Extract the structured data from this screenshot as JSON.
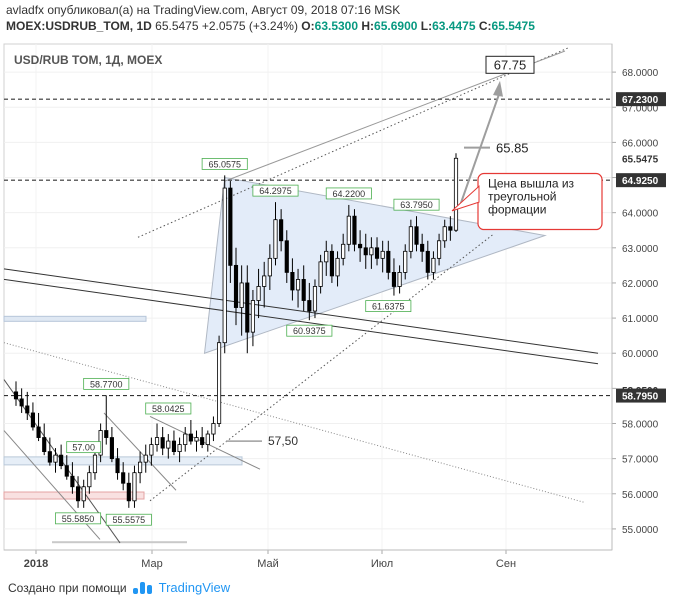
{
  "header": {
    "line1": "avladfx опубликовал(а) на TradingView.com, Август 09, 2018 07:16 MSK",
    "symbol": "MOEX:USDRUB_TOM, 1D",
    "last": "65.5475",
    "change": "+2.0575 (+3.24%)",
    "o_label": "O:",
    "o": "63.5300",
    "h_label": "H:",
    "h": "65.6900",
    "l_label": "L:",
    "l": "63.4475",
    "c_label": "C:",
    "c": "65.5475"
  },
  "chart_data": {
    "type": "candlestick",
    "title": "USD/RUB TOM, 1Д, MOEX",
    "ylim": [
      54.4,
      68.8
    ],
    "y_ticks": [
      "55.0000",
      "56.0000",
      "57.0000",
      "58.0000",
      "59.0000",
      "60.0000",
      "61.0000",
      "62.0000",
      "63.0000",
      "64.0000",
      "65.0000",
      "66.0000",
      "67.0000",
      "68.0000"
    ],
    "x_ticks": [
      "2018",
      "Мар",
      "Май",
      "Июл",
      "Сен"
    ],
    "price_tags": [
      {
        "value": "67.2300",
        "y": 67.23,
        "style": "dark"
      },
      {
        "value": "65.5475",
        "y": 65.5475,
        "style": "plain"
      },
      {
        "value": "64.9250",
        "y": 64.925,
        "style": "dark"
      },
      {
        "value": "58.9500",
        "y": 58.95,
        "style": "plain"
      },
      {
        "value": "58.7950",
        "y": 58.795,
        "style": "dark"
      }
    ],
    "horizontal_levels": [
      67.23,
      64.925,
      58.795
    ],
    "candles": [
      {
        "o": 58.9,
        "h": 59.2,
        "l": 58.5,
        "c": 58.7
      },
      {
        "o": 58.7,
        "h": 59.0,
        "l": 58.3,
        "c": 58.5
      },
      {
        "o": 58.5,
        "h": 58.9,
        "l": 58.1,
        "c": 58.3
      },
      {
        "o": 58.3,
        "h": 58.6,
        "l": 57.8,
        "c": 57.9
      },
      {
        "o": 57.9,
        "h": 58.3,
        "l": 57.5,
        "c": 57.6
      },
      {
        "o": 57.6,
        "h": 58.0,
        "l": 57.1,
        "c": 57.2
      },
      {
        "o": 57.2,
        "h": 57.6,
        "l": 56.8,
        "c": 56.9
      },
      {
        "o": 56.9,
        "h": 57.3,
        "l": 56.6,
        "c": 57.1
      },
      {
        "o": 57.1,
        "h": 57.4,
        "l": 56.7,
        "c": 56.8
      },
      {
        "o": 56.8,
        "h": 57.1,
        "l": 56.4,
        "c": 56.5
      },
      {
        "o": 56.5,
        "h": 56.9,
        "l": 56.0,
        "c": 56.2
      },
      {
        "o": 56.2,
        "h": 56.5,
        "l": 55.6,
        "c": 55.8
      },
      {
        "o": 55.8,
        "h": 56.4,
        "l": 55.6,
        "c": 56.2
      },
      {
        "o": 56.2,
        "h": 56.8,
        "l": 56.0,
        "c": 56.6
      },
      {
        "o": 56.6,
        "h": 57.3,
        "l": 56.4,
        "c": 57.1
      },
      {
        "o": 57.1,
        "h": 58.0,
        "l": 56.9,
        "c": 57.8
      },
      {
        "o": 57.8,
        "h": 58.8,
        "l": 57.4,
        "c": 57.6
      },
      {
        "o": 57.6,
        "h": 57.9,
        "l": 56.9,
        "c": 57.0
      },
      {
        "o": 57.0,
        "h": 57.3,
        "l": 56.4,
        "c": 56.6
      },
      {
        "o": 56.6,
        "h": 56.9,
        "l": 56.1,
        "c": 56.3
      },
      {
        "o": 56.3,
        "h": 56.6,
        "l": 55.6,
        "c": 55.8
      },
      {
        "o": 55.8,
        "h": 56.8,
        "l": 55.6,
        "c": 56.6
      },
      {
        "o": 56.6,
        "h": 57.2,
        "l": 56.3,
        "c": 56.9
      },
      {
        "o": 56.9,
        "h": 57.4,
        "l": 56.6,
        "c": 57.1
      },
      {
        "o": 57.1,
        "h": 57.6,
        "l": 56.8,
        "c": 57.4
      },
      {
        "o": 57.4,
        "h": 58.0,
        "l": 57.2,
        "c": 57.6
      },
      {
        "o": 57.6,
        "h": 57.9,
        "l": 57.1,
        "c": 57.3
      },
      {
        "o": 57.3,
        "h": 57.7,
        "l": 57.0,
        "c": 57.5
      },
      {
        "o": 57.5,
        "h": 57.8,
        "l": 57.1,
        "c": 57.2
      },
      {
        "o": 57.2,
        "h": 57.6,
        "l": 56.9,
        "c": 57.4
      },
      {
        "o": 57.4,
        "h": 57.9,
        "l": 57.2,
        "c": 57.7
      },
      {
        "o": 57.7,
        "h": 58.1,
        "l": 57.4,
        "c": 57.5
      },
      {
        "o": 57.5,
        "h": 57.8,
        "l": 57.2,
        "c": 57.6
      },
      {
        "o": 57.6,
        "h": 57.9,
        "l": 57.3,
        "c": 57.4
      },
      {
        "o": 57.4,
        "h": 57.8,
        "l": 57.2,
        "c": 57.7
      },
      {
        "o": 57.7,
        "h": 58.2,
        "l": 57.5,
        "c": 58.0
      },
      {
        "o": 58.0,
        "h": 60.5,
        "l": 57.9,
        "c": 60.3
      },
      {
        "o": 60.3,
        "h": 65.06,
        "l": 60.0,
        "c": 64.7
      },
      {
        "o": 64.7,
        "h": 64.9,
        "l": 62.0,
        "c": 62.5
      },
      {
        "o": 62.5,
        "h": 63.0,
        "l": 60.8,
        "c": 61.3
      },
      {
        "o": 61.3,
        "h": 62.5,
        "l": 60.5,
        "c": 62.0
      },
      {
        "o": 62.0,
        "h": 62.5,
        "l": 60.0,
        "c": 60.6
      },
      {
        "o": 60.6,
        "h": 61.8,
        "l": 60.2,
        "c": 61.5
      },
      {
        "o": 61.5,
        "h": 62.4,
        "l": 61.0,
        "c": 61.9
      },
      {
        "o": 61.9,
        "h": 62.6,
        "l": 61.3,
        "c": 62.2
      },
      {
        "o": 62.2,
        "h": 63.1,
        "l": 61.8,
        "c": 62.7
      },
      {
        "o": 62.7,
        "h": 64.3,
        "l": 62.5,
        "c": 63.8
      },
      {
        "o": 63.8,
        "h": 64.1,
        "l": 62.9,
        "c": 63.2
      },
      {
        "o": 63.2,
        "h": 63.5,
        "l": 62.0,
        "c": 62.3
      },
      {
        "o": 62.3,
        "h": 62.7,
        "l": 61.5,
        "c": 61.8
      },
      {
        "o": 61.8,
        "h": 62.4,
        "l": 61.3,
        "c": 62.1
      },
      {
        "o": 62.1,
        "h": 62.5,
        "l": 61.2,
        "c": 61.5
      },
      {
        "o": 61.5,
        "h": 62.0,
        "l": 60.94,
        "c": 61.2
      },
      {
        "o": 61.2,
        "h": 62.1,
        "l": 61.0,
        "c": 61.9
      },
      {
        "o": 61.9,
        "h": 62.8,
        "l": 61.7,
        "c": 62.6
      },
      {
        "o": 62.6,
        "h": 63.2,
        "l": 62.2,
        "c": 62.9
      },
      {
        "o": 62.9,
        "h": 63.1,
        "l": 62.0,
        "c": 62.2
      },
      {
        "o": 62.2,
        "h": 62.9,
        "l": 61.9,
        "c": 62.7
      },
      {
        "o": 62.7,
        "h": 63.4,
        "l": 62.5,
        "c": 63.1
      },
      {
        "o": 63.1,
        "h": 64.22,
        "l": 62.9,
        "c": 63.9
      },
      {
        "o": 63.9,
        "h": 64.1,
        "l": 62.9,
        "c": 63.1
      },
      {
        "o": 63.1,
        "h": 63.5,
        "l": 62.6,
        "c": 63.0
      },
      {
        "o": 63.0,
        "h": 63.4,
        "l": 62.4,
        "c": 62.8
      },
      {
        "o": 62.8,
        "h": 63.3,
        "l": 62.4,
        "c": 63.0
      },
      {
        "o": 63.0,
        "h": 63.3,
        "l": 62.5,
        "c": 62.7
      },
      {
        "o": 62.7,
        "h": 63.2,
        "l": 62.3,
        "c": 62.9
      },
      {
        "o": 62.9,
        "h": 63.2,
        "l": 62.1,
        "c": 62.3
      },
      {
        "o": 62.3,
        "h": 62.7,
        "l": 61.64,
        "c": 61.9
      },
      {
        "o": 61.9,
        "h": 62.5,
        "l": 61.7,
        "c": 62.3
      },
      {
        "o": 62.3,
        "h": 63.1,
        "l": 62.1,
        "c": 62.9
      },
      {
        "o": 62.9,
        "h": 63.8,
        "l": 62.7,
        "c": 63.6
      },
      {
        "o": 63.6,
        "h": 63.9,
        "l": 62.9,
        "c": 63.1
      },
      {
        "o": 63.1,
        "h": 63.4,
        "l": 62.6,
        "c": 62.9
      },
      {
        "o": 62.9,
        "h": 63.2,
        "l": 62.1,
        "c": 62.3
      },
      {
        "o": 62.3,
        "h": 62.9,
        "l": 62.1,
        "c": 62.7
      },
      {
        "o": 62.7,
        "h": 63.4,
        "l": 62.5,
        "c": 63.2
      },
      {
        "o": 63.2,
        "h": 63.8,
        "l": 63.0,
        "c": 63.6
      },
      {
        "o": 63.6,
        "h": 63.9,
        "l": 63.2,
        "c": 63.5
      },
      {
        "o": 63.5,
        "h": 65.69,
        "l": 63.45,
        "c": 65.5475
      }
    ],
    "labels": [
      {
        "text": "65.0575",
        "x": 37,
        "y": 65.06
      },
      {
        "text": "64.2975",
        "x": 46,
        "y": 64.3
      },
      {
        "text": "64.2200",
        "x": 59,
        "y": 64.22
      },
      {
        "text": "63.7950",
        "x": 71,
        "y": 63.9
      },
      {
        "text": "60.9375",
        "x": 52,
        "y": 60.94
      },
      {
        "text": "61.6375",
        "x": 66,
        "y": 61.64
      },
      {
        "text": "58.7700",
        "x": 16,
        "y": 58.8
      },
      {
        "text": "58.0425",
        "x": 27,
        "y": 58.1
      },
      {
        "text": "57.00",
        "x": 12,
        "y": 57.0
      },
      {
        "text": "55.5850",
        "x": 11,
        "y": 55.6
      },
      {
        "text": "55.5575",
        "x": 20,
        "y": 55.56
      }
    ],
    "annotations": {
      "target_box": "67.75",
      "target_text": "65.85",
      "level_text": "57,50",
      "callout": [
        "Цена вышла из",
        "треугольной",
        "формации"
      ]
    },
    "grid": true
  },
  "footer": {
    "created_with": "Создано при помощи",
    "brand": "TradingView"
  },
  "colors": {
    "candle": "#000000",
    "tag_dark": "#333333",
    "label_border": "#4caf50",
    "callout_border": "#e53935",
    "triangle_fill": "#e3ecf9",
    "arrow": "#9e9e9e"
  }
}
